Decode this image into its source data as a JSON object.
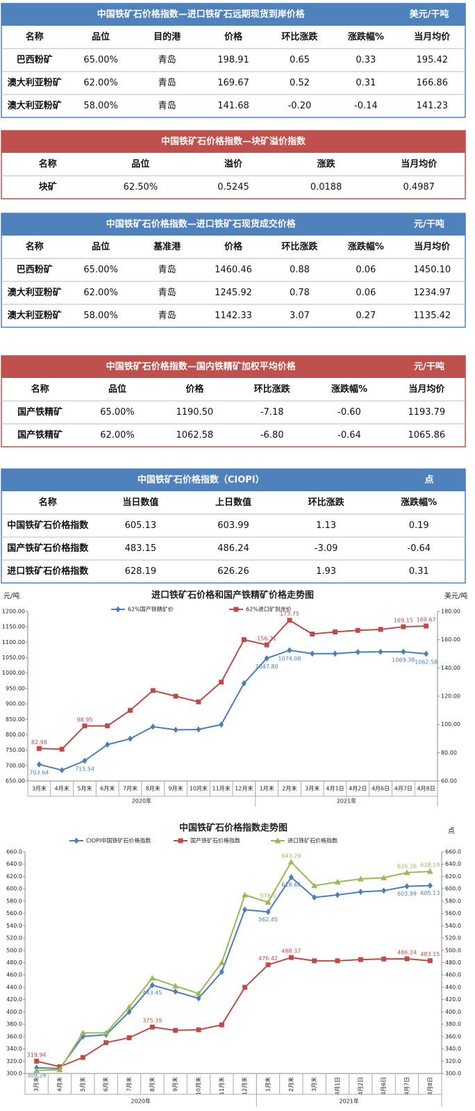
{
  "tables": [
    {
      "title": "中国铁矿石价格指数—进口铁矿石远期现货到岸价格",
      "unit": "美元/干吨",
      "color": "#4f81bd",
      "headers": [
        "名称",
        "品位",
        "目的港",
        "价格",
        "环比涨跌",
        "涨跌幅%",
        "当月均价"
      ],
      "rows": [
        [
          "巴西粉矿",
          "65.00%",
          "青岛",
          "198.91",
          "0.65",
          "0.33",
          "195.42"
        ],
        [
          "澳大利亚粉矿",
          "62.00%",
          "青岛",
          "169.67",
          "0.52",
          "0.31",
          "166.86"
        ],
        [
          "澳大利亚粉矿",
          "58.00%",
          "青岛",
          "141.68",
          "-0.20",
          "-0.14",
          "141.23"
        ]
      ]
    },
    {
      "title": "中国铁矿石价格指数—块矿溢价指数",
      "color": "#c0504d",
      "headers": [
        "名称",
        "品位",
        "溢价",
        "涨跌",
        "当月均价"
      ],
      "rows": [
        [
          "块矿",
          "62.50%",
          "0.5245",
          "0.0188",
          "0.4987"
        ]
      ]
    },
    {
      "title": "中国铁矿石价格指数—进口铁矿石现货成交价格",
      "unit": "元/干吨",
      "color": "#4f81bd",
      "headers": [
        "名称",
        "品位",
        "基准港",
        "价格",
        "环比涨跌",
        "涨跌幅%",
        "当月均价"
      ],
      "rows": [
        [
          "巴西粉矿",
          "65.00%",
          "青岛",
          "1460.46",
          "0.88",
          "0.06",
          "1450.10"
        ],
        [
          "澳大利亚粉矿",
          "62.00%",
          "青岛",
          "1245.92",
          "0.78",
          "0.06",
          "1234.97"
        ],
        [
          "澳大利亚粉矿",
          "58.00%",
          "青岛",
          "1142.33",
          "3.07",
          "0.27",
          "1135.42"
        ]
      ]
    },
    {
      "title": "中国铁矿石价格指数—国内铁精矿加权平均价格",
      "unit": "元/干吨",
      "color": "#c0504d",
      "headers": [
        "名称",
        "品位",
        "价格",
        "环比涨跌",
        "涨跌幅%",
        "当月均价"
      ],
      "rows": [
        [
          "国产铁精矿",
          "65.00%",
          "1190.50",
          "-7.18",
          "-0.60",
          "1193.79"
        ],
        [
          "国产铁精矿",
          "62.00%",
          "1062.58",
          "-6.80",
          "-0.64",
          "1065.86"
        ]
      ]
    },
    {
      "title": "中国铁矿石价格指数（CIOPI）",
      "unit": "点",
      "color": "#4f81bd",
      "headers": [
        "名称",
        "当日数值",
        "上日数值",
        "环比涨跌",
        "涨跌幅%"
      ],
      "rows": [
        [
          "中国铁矿石价格指数",
          "605.13",
          "603.99",
          "1.13",
          "0.19"
        ],
        [
          "国产铁矿石价格指数",
          "483.15",
          "486.24",
          "-3.09",
          "-0.64"
        ],
        [
          "进口铁矿石价格指数",
          "628.19",
          "626.26",
          "1.93",
          "0.31"
        ]
      ]
    }
  ],
  "chart_data": [
    {
      "type": "line",
      "title": "进口铁矿石价格和国产铁精矿价格走势图",
      "y_label": "元/吨",
      "y2_label": "美元/吨",
      "categories": [
        "3月末",
        "4月末",
        "5月末",
        "6月末",
        "7月末",
        "8月末",
        "9月末",
        "10月末",
        "11月末",
        "12月末",
        "1月末",
        "2月末",
        "3月末",
        "4月1日",
        "4月2日",
        "4月6日",
        "4月7日",
        "4月8日"
      ],
      "x_groups": [
        "2020年",
        "2021年"
      ],
      "ylim": [
        650,
        1200
      ],
      "yticks": [
        {
          "value": 650,
          "label": "650.00"
        },
        {
          "value": 700,
          "label": "700.00"
        },
        {
          "value": 750,
          "label": "750.00"
        },
        {
          "value": 800,
          "label": "800.00"
        },
        {
          "value": 850,
          "label": "850.00"
        },
        {
          "value": 900,
          "label": "900.00"
        },
        {
          "value": 950,
          "label": "950.00"
        },
        {
          "value": 1000,
          "label": "1000.00"
        },
        {
          "value": 1050,
          "label": "1050.00"
        },
        {
          "value": 1100,
          "label": "1100.00"
        },
        {
          "value": 1150,
          "label": "1150.00"
        },
        {
          "value": 1200,
          "label": "1200.00"
        }
      ],
      "y2lim": [
        60,
        180
      ],
      "y2ticks": [
        {
          "value": 60,
          "label": "60.00"
        },
        {
          "value": 80,
          "label": "80.00"
        },
        {
          "value": 100,
          "label": "100.00"
        },
        {
          "value": 120,
          "label": "120.00"
        },
        {
          "value": 140,
          "label": "140.00"
        },
        {
          "value": 160,
          "label": "160.00"
        },
        {
          "value": 180,
          "label": "180.00"
        }
      ],
      "series": [
        {
          "name": "62%国产铁精矿价",
          "color": "#4a7ebb",
          "marker": "diamond",
          "values": [
            703.64,
            685,
            715.54,
            768,
            787,
            826,
            816,
            817,
            833,
            967,
            1047.8,
            1074.08,
            1063,
            1063,
            1068,
            1069,
            1069.38,
            1062.58
          ],
          "value_labels": [
            "703.64",
            null,
            "715.54",
            null,
            null,
            null,
            null,
            null,
            null,
            null,
            "1047.80",
            "1074.08",
            null,
            null,
            null,
            null,
            "1069.38",
            "1062.58"
          ]
        },
        {
          "name": "62%进口矿到岸价",
          "color": "#be4b48",
          "marker": "square",
          "axis": "y2",
          "values": [
            82.98,
            82.5,
            98.95,
            99,
            110,
            124,
            120,
            116,
            130,
            160,
            156.31,
            173.75,
            164,
            165.5,
            166.6,
            167.3,
            169.15,
            169.67
          ],
          "value_labels": [
            "82.98",
            null,
            "98.95",
            null,
            null,
            null,
            null,
            null,
            null,
            null,
            "156.31",
            "173.75",
            null,
            null,
            null,
            null,
            "169.15",
            "169.67"
          ]
        }
      ]
    },
    {
      "type": "line",
      "title": "中国铁矿石价格指数走势图",
      "y2_label": "点",
      "categories": [
        "3月末",
        "4月末",
        "5月末",
        "6月末",
        "7月末",
        "8月末",
        "9月末",
        "10月末",
        "11月末",
        "12月末",
        "1月末",
        "2月末",
        "3月末",
        "4月1日",
        "4月2日",
        "4月6日",
        "4月7日",
        "4月8日"
      ],
      "x_groups": [
        "2020年",
        "2021年"
      ],
      "ylim": [
        300,
        660
      ],
      "yticks": [
        {
          "value": 300,
          "label": "300.0"
        },
        {
          "value": 320,
          "label": "320.0"
        },
        {
          "value": 340,
          "label": "340.0"
        },
        {
          "value": 360,
          "label": "360.0"
        },
        {
          "value": 380,
          "label": "380.0"
        },
        {
          "value": 400,
          "label": "400.0"
        },
        {
          "value": 420,
          "label": "420.0"
        },
        {
          "value": 440,
          "label": "440.0"
        },
        {
          "value": 460,
          "label": "460.0"
        },
        {
          "value": 480,
          "label": "480.0"
        },
        {
          "value": 500,
          "label": "500.0"
        },
        {
          "value": 520,
          "label": "520.0"
        },
        {
          "value": 540,
          "label": "540.0"
        },
        {
          "value": 560,
          "label": "560.0"
        },
        {
          "value": 580,
          "label": "580.0"
        },
        {
          "value": 600,
          "label": "600.0"
        },
        {
          "value": 620,
          "label": "620.0"
        },
        {
          "value": 640,
          "label": "640.0"
        },
        {
          "value": 660,
          "label": "660.0"
        }
      ],
      "y2lim": [
        300,
        660
      ],
      "y2ticks": [
        {
          "value": 300,
          "label": "300.0"
        },
        {
          "value": 320,
          "label": "320.0"
        },
        {
          "value": 340,
          "label": "340.0"
        },
        {
          "value": 360,
          "label": "360.0"
        },
        {
          "value": 380,
          "label": "380.0"
        },
        {
          "value": 400,
          "label": "400.0"
        },
        {
          "value": 420,
          "label": "420.0"
        },
        {
          "value": 440,
          "label": "440.0"
        },
        {
          "value": 460,
          "label": "460.0"
        },
        {
          "value": 480,
          "label": "480.0"
        },
        {
          "value": 500,
          "label": "500.0"
        },
        {
          "value": 520,
          "label": "520.0"
        },
        {
          "value": 540,
          "label": "540.0"
        },
        {
          "value": 560,
          "label": "560.0"
        },
        {
          "value": 580,
          "label": "580.0"
        },
        {
          "value": 600,
          "label": "600.0"
        },
        {
          "value": 620,
          "label": "620.0"
        },
        {
          "value": 640,
          "label": "640.0"
        },
        {
          "value": 660,
          "label": "660.0"
        }
      ],
      "series": [
        {
          "name": "CIOPI中国铁矿石价格指数",
          "color": "#4a7ebb",
          "marker": "diamond",
          "values": [
            309.24,
            308,
            360,
            363,
            400,
            443.45,
            433,
            422,
            465,
            566,
            562.45,
            618.66,
            586,
            590,
            595,
            597,
            603.99,
            605.13
          ],
          "value_labels": [
            "309.24",
            null,
            null,
            null,
            null,
            "443.45",
            null,
            null,
            null,
            null,
            "562.45",
            "618.66",
            null,
            null,
            null,
            null,
            "603.99",
            "605.13"
          ]
        },
        {
          "name": "国产铁矿石价格指数",
          "color": "#be4b48",
          "marker": "square",
          "values": [
            319.94,
            311,
            326,
            350,
            358,
            375.39,
            370,
            371,
            379,
            440,
            476.42,
            488.37,
            483,
            483,
            485,
            486,
            486.24,
            483.15
          ],
          "value_labels": [
            "319.94",
            null,
            null,
            null,
            null,
            "375.39",
            null,
            null,
            null,
            null,
            "476.42",
            "488.37",
            null,
            null,
            null,
            null,
            "486.24",
            "483.15"
          ]
        },
        {
          "name": "进口铁矿石价格指数",
          "color": "#98b954",
          "marker": "triangle",
          "values": [
            305,
            306,
            366,
            366,
            408,
            455,
            442,
            430,
            480,
            590,
            578.1,
            643.29,
            605,
            611,
            616,
            618,
            626.26,
            628.19
          ],
          "value_labels": [
            null,
            null,
            null,
            null,
            null,
            null,
            null,
            null,
            null,
            null,
            "578.1",
            "643.29",
            null,
            null,
            null,
            null,
            "626.26",
            "628.19"
          ]
        }
      ]
    }
  ]
}
